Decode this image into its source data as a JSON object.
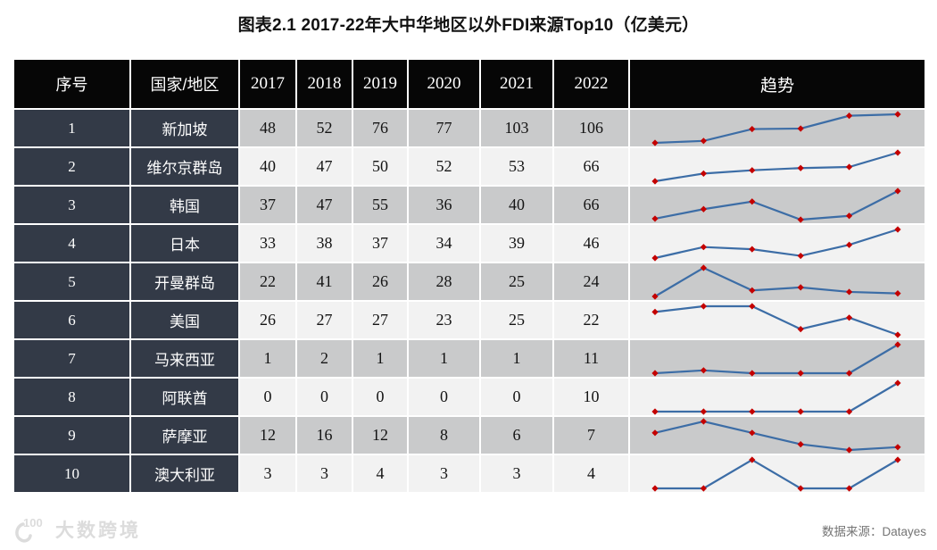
{
  "title": "图表2.1 2017-22年大中华地区以外FDI来源Top10（亿美元）",
  "chart_data": {
    "type": "table",
    "title": "图表2.1 2017-22年大中华地区以外FDI来源Top10（亿美元）",
    "unit": "亿美元",
    "columns": {
      "rank": "序号",
      "country": "国家/地区",
      "years": [
        "2017",
        "2018",
        "2019",
        "2020",
        "2021",
        "2022"
      ],
      "trend": "趋势"
    },
    "rows": [
      {
        "rank": "1",
        "country": "新加坡",
        "values": [
          48,
          52,
          76,
          77,
          103,
          106
        ]
      },
      {
        "rank": "2",
        "country": "维尔京群岛",
        "values": [
          40,
          47,
          50,
          52,
          53,
          66
        ]
      },
      {
        "rank": "3",
        "country": "韩国",
        "values": [
          37,
          47,
          55,
          36,
          40,
          66
        ]
      },
      {
        "rank": "4",
        "country": "日本",
        "values": [
          33,
          38,
          37,
          34,
          39,
          46
        ]
      },
      {
        "rank": "5",
        "country": "开曼群岛",
        "values": [
          22,
          41,
          26,
          28,
          25,
          24
        ]
      },
      {
        "rank": "6",
        "country": "美国",
        "values": [
          26,
          27,
          27,
          23,
          25,
          22
        ]
      },
      {
        "rank": "7",
        "country": "马来西亚",
        "values": [
          1,
          2,
          1,
          1,
          1,
          11
        ]
      },
      {
        "rank": "8",
        "country": "阿联酋",
        "values": [
          0,
          0,
          0,
          0,
          0,
          10
        ]
      },
      {
        "rank": "9",
        "country": "萨摩亚",
        "values": [
          12,
          16,
          12,
          8,
          6,
          7
        ]
      },
      {
        "rank": "10",
        "country": "澳大利亚",
        "values": [
          3,
          3,
          4,
          3,
          3,
          4
        ]
      }
    ],
    "trend_style": "per-row min-max scaled sparkline, blue line with red diamond markers",
    "legend_position": "none",
    "grid": false
  },
  "footer": {
    "logo_mark": "100",
    "logo_text": "大数跨境",
    "source_label": "数据来源：",
    "source_value": "Datayes"
  },
  "colors": {
    "header_bg": "#060606",
    "dark_cell_bg": "#333A47",
    "row_odd_bg": "#C9CACB",
    "row_even_bg": "#F2F2F2",
    "spark_line": "#3C6DA6",
    "spark_marker": "#C40000",
    "watermark": "#DCDCDC",
    "source_text": "#757575"
  }
}
